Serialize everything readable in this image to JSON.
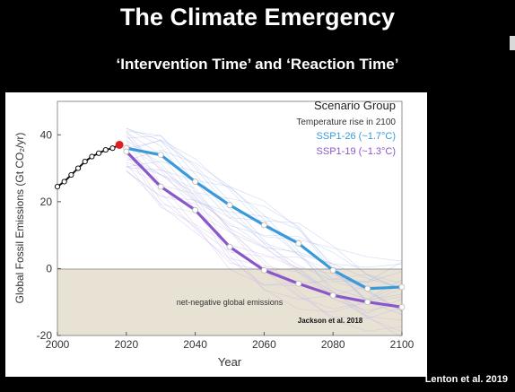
{
  "slide": {
    "title": "The Climate Emergency",
    "subtitle": "‘Intervention Time’ and ‘Reaction Time’",
    "credit": "Lenton et al. 2019"
  },
  "chart_data": {
    "type": "line",
    "xlabel": "Year",
    "ylabel": "Global Fossil Emissions (Gt CO₂/yr)",
    "xlim": [
      2000,
      2100
    ],
    "ylim": [
      -20,
      50
    ],
    "xticks": [
      2000,
      2020,
      2040,
      2060,
      2080,
      2100
    ],
    "yticks": [
      -20,
      0,
      20,
      40
    ],
    "legend": {
      "title": "Scenario Group",
      "subtitle": "Temperature rise in 2100",
      "placement": "top-right"
    },
    "series": [
      {
        "name": "Historical",
        "color": "#111111",
        "x": [
          2000,
          2002,
          2004,
          2006,
          2008,
          2010,
          2012,
          2014,
          2016,
          2018
        ],
        "y": [
          24.5,
          26,
          28,
          30,
          32,
          33.5,
          34.5,
          35.5,
          36,
          37
        ]
      },
      {
        "name": "SSP1-26 (~1.7°C)",
        "color": "#3a9ad9",
        "x": [
          2020,
          2030,
          2040,
          2050,
          2060,
          2070,
          2080,
          2090,
          2100
        ],
        "y": [
          36,
          34,
          26,
          19,
          13,
          7.5,
          -0.5,
          -6,
          -5.5
        ]
      },
      {
        "name": "SSP1-19 (~1.3°C)",
        "color": "#8a57c9",
        "x": [
          2020,
          2030,
          2040,
          2050,
          2060,
          2070,
          2080,
          2090,
          2100
        ],
        "y": [
          35,
          24.5,
          17.5,
          6.5,
          -0.5,
          -4.5,
          -8,
          -10,
          -11.5
        ]
      }
    ],
    "annotations": {
      "region_label": "net-negative global emissions",
      "source": "Jackson et al. 2018"
    },
    "colors": {
      "negative_region": "#e8e2d4",
      "highlight_point": "#e02020"
    }
  }
}
